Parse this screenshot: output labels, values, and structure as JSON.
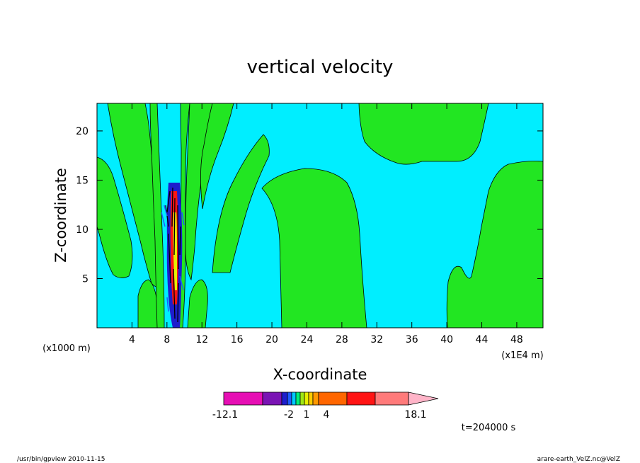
{
  "chart_data": {
    "type": "contour",
    "title": "vertical velocity",
    "xlabel": "X-coordinate",
    "ylabel": "Z-coordinate",
    "x_unit_left": "(x1000 m)",
    "x_unit_right": "(x1E4 m)",
    "xlim": [
      0,
      51
    ],
    "ylim": [
      0,
      22.8
    ],
    "x_ticks": [
      4,
      8,
      12,
      16,
      20,
      24,
      28,
      32,
      36,
      40,
      44,
      48
    ],
    "y_ticks": [
      5,
      10,
      15,
      20
    ],
    "grid": false,
    "background_color": "#00eeff",
    "colorbar": {
      "min_label": "-12.1",
      "max_label": "18.1",
      "tick_labels": [
        "-12.1",
        "-2",
        "1",
        "4",
        "18.1"
      ],
      "colors": [
        "#e60fb4",
        "#7a14b4",
        "#1e1ecc",
        "#1e5aff",
        "#00c8ff",
        "#00ee7a",
        "#9fe614",
        "#e6f000",
        "#ffcc00",
        "#ff9900",
        "#ff6600",
        "#ff1414",
        "#ff7a7a",
        "#ffb4c8"
      ]
    },
    "dominant_levels": [
      {
        "name": "cyan",
        "color": "#00eeff"
      },
      {
        "name": "green",
        "color": "#22e622"
      }
    ],
    "time_label": "t=204000 s"
  },
  "footer": {
    "left": "/usr/bin/gpview   2010-11-15",
    "right": "arare-earth_VelZ.nc@VelZ"
  }
}
